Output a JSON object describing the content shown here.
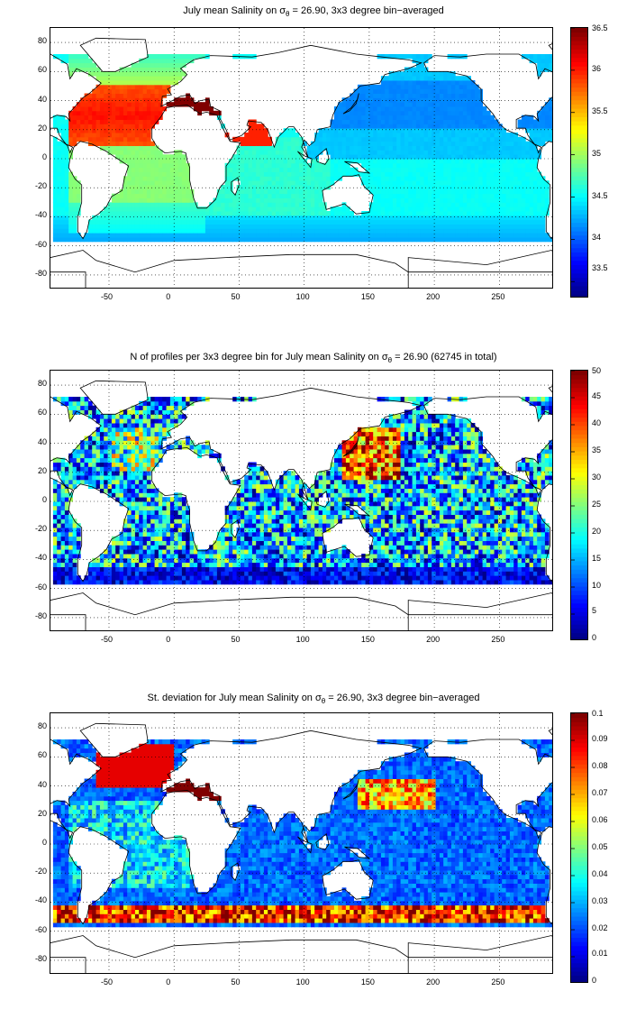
{
  "chart_data": [
    {
      "type": "heatmap",
      "title_prefix": "July mean Salinity on σ",
      "title_sub": "θ",
      "title_suffix": " = 26.90, 3x3 degree bin−averaged",
      "xlim": [
        -95,
        292
      ],
      "ylim": [
        -90,
        90
      ],
      "xticks": [
        -50,
        0,
        50,
        100,
        150,
        200,
        250
      ],
      "yticks": [
        80,
        60,
        40,
        20,
        0,
        -20,
        -40,
        -60,
        -80
      ],
      "grid": true,
      "colorbar": {
        "min": 33.3,
        "max": 36.5,
        "ticks": [
          36.5,
          36,
          35.5,
          35,
          34.5,
          34,
          33.5
        ],
        "position": "right"
      },
      "colormap": "jet",
      "field": "salinity"
    },
    {
      "type": "heatmap",
      "title_prefix": "N of profiles per 3x3 degree bin for July mean Salinity on σ",
      "title_sub": "θ",
      "title_suffix": " = 26.90 (62745 in total)",
      "xlim": [
        -95,
        292
      ],
      "ylim": [
        -90,
        90
      ],
      "xticks": [
        -50,
        0,
        50,
        100,
        150,
        200,
        250
      ],
      "yticks": [
        80,
        60,
        40,
        20,
        0,
        -20,
        -40,
        -60,
        -80
      ],
      "grid": true,
      "colorbar": {
        "min": 0,
        "max": 50,
        "ticks": [
          50,
          45,
          40,
          35,
          30,
          25,
          20,
          15,
          10,
          5,
          0
        ],
        "position": "right"
      },
      "colormap": "jet",
      "field": "count"
    },
    {
      "type": "heatmap",
      "title_prefix": "St. deviation for July mean Salinity on σ",
      "title_sub": "θ",
      "title_suffix": " = 26.90, 3x3 degree bin−averaged",
      "xlim": [
        -95,
        292
      ],
      "ylim": [
        -90,
        90
      ],
      "xticks": [
        -50,
        0,
        50,
        100,
        150,
        200,
        250
      ],
      "yticks": [
        80,
        60,
        40,
        20,
        0,
        -20,
        -40,
        -60,
        -80
      ],
      "grid": true,
      "colorbar": {
        "min": 0,
        "max": 0.1,
        "ticks": [
          0.1,
          0.09,
          0.08,
          0.07,
          0.06,
          0.05,
          0.04,
          0.03,
          0.02,
          0.01,
          0
        ],
        "position": "right"
      },
      "colormap": "jet",
      "field": "stdev"
    }
  ]
}
